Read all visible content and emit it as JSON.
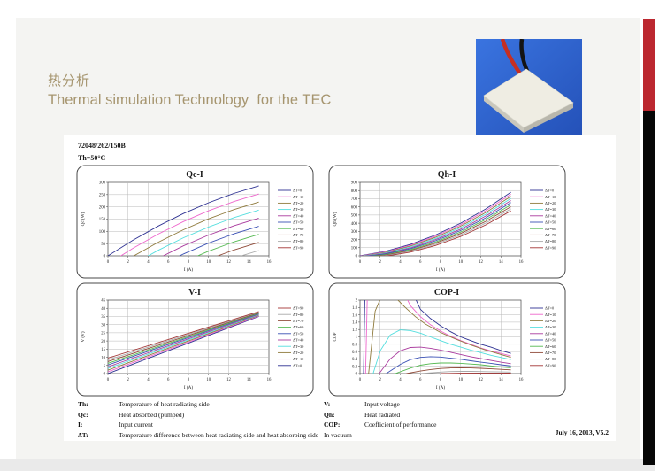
{
  "slide": {
    "title_cn": "热分析",
    "title_en": "Thermal simulation Technology  for the TEC",
    "accent_color": "#a6956f",
    "red_bar_color": "#bc2830",
    "black_bar_color": "#070707",
    "model_number": "72048/262/150B",
    "condition": "Th=50°C",
    "footer": "July 16, 2013, V5.2"
  },
  "definitions": {
    "left": [
      {
        "term": "Th:",
        "text": "Temperature of heat radiating side"
      },
      {
        "term": "Qc:",
        "text": "Heat absorbed (pumped)"
      },
      {
        "term": "I:",
        "text": "Input current"
      },
      {
        "term": "ΔT:",
        "text": "Temperature difference between heat radiating side and heat absorbing side"
      }
    ],
    "right": [
      {
        "term": "V:",
        "text": "Input voltage"
      },
      {
        "term": "Qh:",
        "text": "Heat radiated"
      },
      {
        "term": "COP:",
        "text": "Coefficient of performance"
      }
    ],
    "note": "In vacuum"
  },
  "photo": {
    "description": "TEC ceramic module on blue background with red and black wires",
    "bg_color": "#2f63d0"
  },
  "chart_data": [
    {
      "type": "line",
      "title": "Qc-I",
      "xlabel": "I (A)",
      "ylabel": "Qc (W)",
      "xlim": [
        0,
        16
      ],
      "ylim": [
        0,
        300
      ],
      "xticks": [
        0,
        2,
        4,
        6,
        8,
        10,
        12,
        14,
        16
      ],
      "yticks": [
        0,
        50,
        100,
        150,
        200,
        250,
        300
      ],
      "grid": true,
      "legend_position": "right",
      "legend_reversed": false,
      "x": [
        0,
        2.5,
        5,
        7.5,
        10,
        12.5,
        15
      ],
      "series": [
        {
          "name": "ΔT=0",
          "color": "#2e3192",
          "y": [
            0,
            64.2,
            121.8,
            172.7,
            217,
            254.7,
            285.8
          ]
        },
        {
          "name": "ΔT=10",
          "color": "#ee66cc",
          "y": [
            -33,
            31.2,
            88.8,
            139.7,
            184,
            221.7,
            252.8
          ]
        },
        {
          "name": "ΔT=20",
          "color": "#8f7a3c",
          "y": [
            -66,
            -1.8,
            55.8,
            106.7,
            151,
            188.7,
            219.8
          ]
        },
        {
          "name": "ΔT=30",
          "color": "#53dede",
          "y": [
            -99,
            -34.8,
            22.8,
            73.7,
            118,
            155.7,
            186.8
          ]
        },
        {
          "name": "ΔT=40",
          "color": "#aa3b9e",
          "y": [
            -132,
            -67.8,
            -10.2,
            40.7,
            85,
            122.7,
            153.8
          ]
        },
        {
          "name": "ΔT=50",
          "color": "#3a50b4",
          "y": [
            -165,
            -100.8,
            -43.2,
            7.7,
            52,
            89.7,
            120.8
          ]
        },
        {
          "name": "ΔT=60",
          "color": "#55b952",
          "y": [
            -198,
            -133.8,
            -76.2,
            -25.3,
            19,
            56.7,
            87.8
          ]
        },
        {
          "name": "ΔT=70",
          "color": "#8f4a38",
          "y": [
            -231,
            -166.8,
            -109.2,
            -58.3,
            -14,
            23.7,
            54.8
          ]
        },
        {
          "name": "ΔT=80",
          "color": "#a9a9a9",
          "y": [
            -264,
            -199.8,
            -142.2,
            -91.3,
            -47,
            -9.3,
            21.8
          ]
        },
        {
          "name": "ΔT=90",
          "color": "#a33636",
          "y": [
            -297,
            -232.8,
            -175.2,
            -124.3,
            -80,
            -42.3,
            -11.2
          ]
        }
      ]
    },
    {
      "type": "line",
      "title": "Qh-I",
      "xlabel": "I (A)",
      "ylabel": "Qh (W)",
      "xlim": [
        0,
        16
      ],
      "ylim": [
        0,
        900
      ],
      "xticks": [
        0,
        2,
        4,
        6,
        8,
        10,
        12,
        14,
        16
      ],
      "yticks": [
        0,
        100,
        200,
        300,
        400,
        500,
        600,
        700,
        800,
        900
      ],
      "grid": true,
      "legend_position": "right",
      "legend_reversed": false,
      "x": [
        0,
        2.5,
        5,
        7.5,
        10,
        12.5,
        15
      ],
      "series": [
        {
          "name": "ΔT=0",
          "color": "#2e3192",
          "y": [
            0,
            55,
            140,
            255,
            400,
            575,
            780
          ]
        },
        {
          "name": "ΔT=10",
          "color": "#ee66cc",
          "y": [
            -3,
            48.3,
            129.5,
            240.8,
            382,
            553.3,
            754.5
          ]
        },
        {
          "name": "ΔT=20",
          "color": "#8f7a3c",
          "y": [
            -6,
            41.5,
            119,
            226.5,
            364,
            531.5,
            729
          ]
        },
        {
          "name": "ΔT=30",
          "color": "#53dede",
          "y": [
            -9,
            34.8,
            108.5,
            212.3,
            346,
            509.8,
            703.5
          ]
        },
        {
          "name": "ΔT=40",
          "color": "#aa3b9e",
          "y": [
            -12,
            28,
            98,
            198,
            328,
            488,
            678
          ]
        },
        {
          "name": "ΔT=50",
          "color": "#3a50b4",
          "y": [
            -15,
            21.3,
            87.5,
            183.8,
            310,
            466.3,
            652.5
          ]
        },
        {
          "name": "ΔT=60",
          "color": "#55b952",
          "y": [
            -18,
            14.5,
            77,
            169.5,
            292,
            444.5,
            627
          ]
        },
        {
          "name": "ΔT=70",
          "color": "#8f4a38",
          "y": [
            -21,
            7.8,
            66.5,
            155.3,
            274,
            422.8,
            601.5
          ]
        },
        {
          "name": "ΔT=80",
          "color": "#a9a9a9",
          "y": [
            -24,
            1,
            56,
            141,
            256,
            401,
            576
          ]
        },
        {
          "name": "ΔT=90",
          "color": "#a33636",
          "y": [
            -27,
            -5.8,
            45.5,
            126.8,
            238,
            379.3,
            550.5
          ]
        }
      ]
    },
    {
      "type": "line",
      "title": "V-I",
      "xlabel": "I (A)",
      "ylabel": "V (V)",
      "xlim": [
        0,
        16
      ],
      "ylim": [
        0,
        45
      ],
      "xticks": [
        0,
        2,
        4,
        6,
        8,
        10,
        12,
        14,
        16
      ],
      "yticks": [
        0,
        5,
        10,
        15,
        20,
        25,
        30,
        35,
        40,
        45
      ],
      "grid": true,
      "legend_position": "right",
      "legend_reversed": true,
      "x": [
        0,
        15
      ],
      "series": [
        {
          "name": "ΔT=0",
          "color": "#2e3192",
          "y": [
            0,
            35
          ]
        },
        {
          "name": "ΔT=10",
          "color": "#ee66cc",
          "y": [
            1.1,
            35.3
          ]
        },
        {
          "name": "ΔT=20",
          "color": "#8f7a3c",
          "y": [
            2.1,
            35.7
          ]
        },
        {
          "name": "ΔT=30",
          "color": "#53dede",
          "y": [
            3.2,
            36
          ]
        },
        {
          "name": "ΔT=40",
          "color": "#aa3b9e",
          "y": [
            4.2,
            36.3
          ]
        },
        {
          "name": "ΔT=50",
          "color": "#3a50b4",
          "y": [
            5.3,
            36.7
          ]
        },
        {
          "name": "ΔT=60",
          "color": "#55b952",
          "y": [
            6.3,
            37
          ]
        },
        {
          "name": "ΔT=70",
          "color": "#8f4a38",
          "y": [
            7.4,
            37.3
          ]
        },
        {
          "name": "ΔT=80",
          "color": "#a9a9a9",
          "y": [
            8.4,
            37.7
          ]
        },
        {
          "name": "ΔT=90",
          "color": "#a33636",
          "y": [
            9.5,
            38
          ]
        }
      ]
    },
    {
      "type": "line",
      "title": "COP-I",
      "xlabel": "I (A)",
      "ylabel": "COP",
      "xlim": [
        0,
        16
      ],
      "ylim": [
        0,
        2
      ],
      "xticks": [
        0,
        2,
        4,
        6,
        8,
        10,
        12,
        14,
        16
      ],
      "yticks": [
        0,
        0.2,
        0.4,
        0.6,
        0.8,
        1,
        1.2,
        1.4,
        1.6,
        1.8,
        2
      ],
      "grid": true,
      "legend_position": "right",
      "legend_reversed": false,
      "series": [
        {
          "name": "ΔT=0",
          "color": "#2e3192",
          "points": [
            [
              0.35,
              0
            ],
            [
              0.5,
              2.4
            ],
            [
              4.9,
              2.4
            ],
            [
              6,
              1.75
            ],
            [
              7,
              1.5
            ],
            [
              8,
              1.3
            ],
            [
              9,
              1.14
            ],
            [
              10,
              1.0
            ],
            [
              11,
              0.9
            ],
            [
              12,
              0.8
            ],
            [
              13,
              0.72
            ],
            [
              14,
              0.63
            ],
            [
              15,
              0.55
            ]
          ]
        },
        {
          "name": "ΔT=10",
          "color": "#ee66cc",
          "points": [
            [
              0.55,
              0
            ],
            [
              0.75,
              2.4
            ],
            [
              4.0,
              2.4
            ],
            [
              5,
              1.85
            ],
            [
              6,
              1.55
            ],
            [
              7,
              1.33
            ],
            [
              8,
              1.16
            ],
            [
              9,
              1.02
            ],
            [
              10,
              0.9
            ],
            [
              11,
              0.8
            ],
            [
              12,
              0.7
            ],
            [
              13,
              0.62
            ],
            [
              14,
              0.55
            ],
            [
              15,
              0.48
            ]
          ]
        },
        {
          "name": "ΔT=20",
          "color": "#8f7a3c",
          "points": [
            [
              0.85,
              0
            ],
            [
              1.5,
              1.7
            ],
            [
              2.2,
              2.15
            ],
            [
              3.4,
              2.1
            ],
            [
              4.5,
              1.8
            ],
            [
              5.5,
              1.55
            ],
            [
              6.5,
              1.35
            ],
            [
              8,
              1.12
            ],
            [
              9.5,
              0.94
            ],
            [
              11,
              0.78
            ],
            [
              12.5,
              0.64
            ],
            [
              14,
              0.52
            ],
            [
              15,
              0.44
            ]
          ]
        },
        {
          "name": "ΔT=30",
          "color": "#53dede",
          "points": [
            [
              1.3,
              0
            ],
            [
              2,
              0.62
            ],
            [
              3,
              1.05
            ],
            [
              4,
              1.19
            ],
            [
              5,
              1.17
            ],
            [
              6,
              1.1
            ],
            [
              7,
              1.0
            ],
            [
              8,
              0.9
            ],
            [
              9,
              0.8
            ],
            [
              10,
              0.72
            ],
            [
              11,
              0.64
            ],
            [
              12,
              0.57
            ],
            [
              13,
              0.5
            ],
            [
              14,
              0.44
            ],
            [
              15,
              0.38
            ]
          ]
        },
        {
          "name": "ΔT=40",
          "color": "#aa3b9e",
          "points": [
            [
              1.9,
              0
            ],
            [
              3,
              0.4
            ],
            [
              4,
              0.62
            ],
            [
              5,
              0.71
            ],
            [
              6,
              0.72
            ],
            [
              7,
              0.69
            ],
            [
              8,
              0.64
            ],
            [
              9,
              0.58
            ],
            [
              10,
              0.52
            ],
            [
              11,
              0.46
            ],
            [
              12,
              0.41
            ],
            [
              13,
              0.36
            ],
            [
              14,
              0.31
            ],
            [
              15,
              0.27
            ]
          ]
        },
        {
          "name": "ΔT=50",
          "color": "#3a50b4",
          "points": [
            [
              2.6,
              0
            ],
            [
              4,
              0.25
            ],
            [
              5,
              0.38
            ],
            [
              6,
              0.44
            ],
            [
              7,
              0.46
            ],
            [
              8,
              0.45
            ],
            [
              9,
              0.42
            ],
            [
              10,
              0.39
            ],
            [
              11,
              0.35
            ],
            [
              12,
              0.31
            ],
            [
              13,
              0.28
            ],
            [
              14,
              0.24
            ],
            [
              15,
              0.21
            ]
          ]
        },
        {
          "name": "ΔT=60",
          "color": "#55b952",
          "points": [
            [
              3.5,
              0
            ],
            [
              5,
              0.15
            ],
            [
              6,
              0.23
            ],
            [
              7,
              0.27
            ],
            [
              8,
              0.29
            ],
            [
              9,
              0.29
            ],
            [
              10,
              0.28
            ],
            [
              11,
              0.26
            ],
            [
              12,
              0.24
            ],
            [
              13,
              0.21
            ],
            [
              14,
              0.18
            ],
            [
              15,
              0.16
            ]
          ]
        },
        {
          "name": "ΔT=70",
          "color": "#8f4a38",
          "points": [
            [
              4.6,
              0
            ],
            [
              6,
              0.07
            ],
            [
              7,
              0.11
            ],
            [
              8,
              0.14
            ],
            [
              9,
              0.155
            ],
            [
              10,
              0.16
            ],
            [
              11,
              0.155
            ],
            [
              12,
              0.145
            ],
            [
              13,
              0.13
            ],
            [
              14,
              0.115
            ],
            [
              15,
              0.1
            ]
          ]
        },
        {
          "name": "ΔT=80",
          "color": "#a9a9a9",
          "points": [
            [
              6,
              0
            ],
            [
              8,
              0.04
            ],
            [
              9,
              0.055
            ],
            [
              10,
              0.06
            ],
            [
              11,
              0.06
            ],
            [
              12,
              0.055
            ],
            [
              13,
              0.05
            ],
            [
              14,
              0.045
            ],
            [
              15,
              0.04
            ]
          ]
        },
        {
          "name": "ΔT=90",
          "color": "#a33636",
          "points": [
            [
              8,
              0
            ],
            [
              10,
              0.01
            ],
            [
              12,
              0.015
            ],
            [
              14,
              0.015
            ],
            [
              15,
              0.012
            ]
          ]
        }
      ]
    }
  ]
}
